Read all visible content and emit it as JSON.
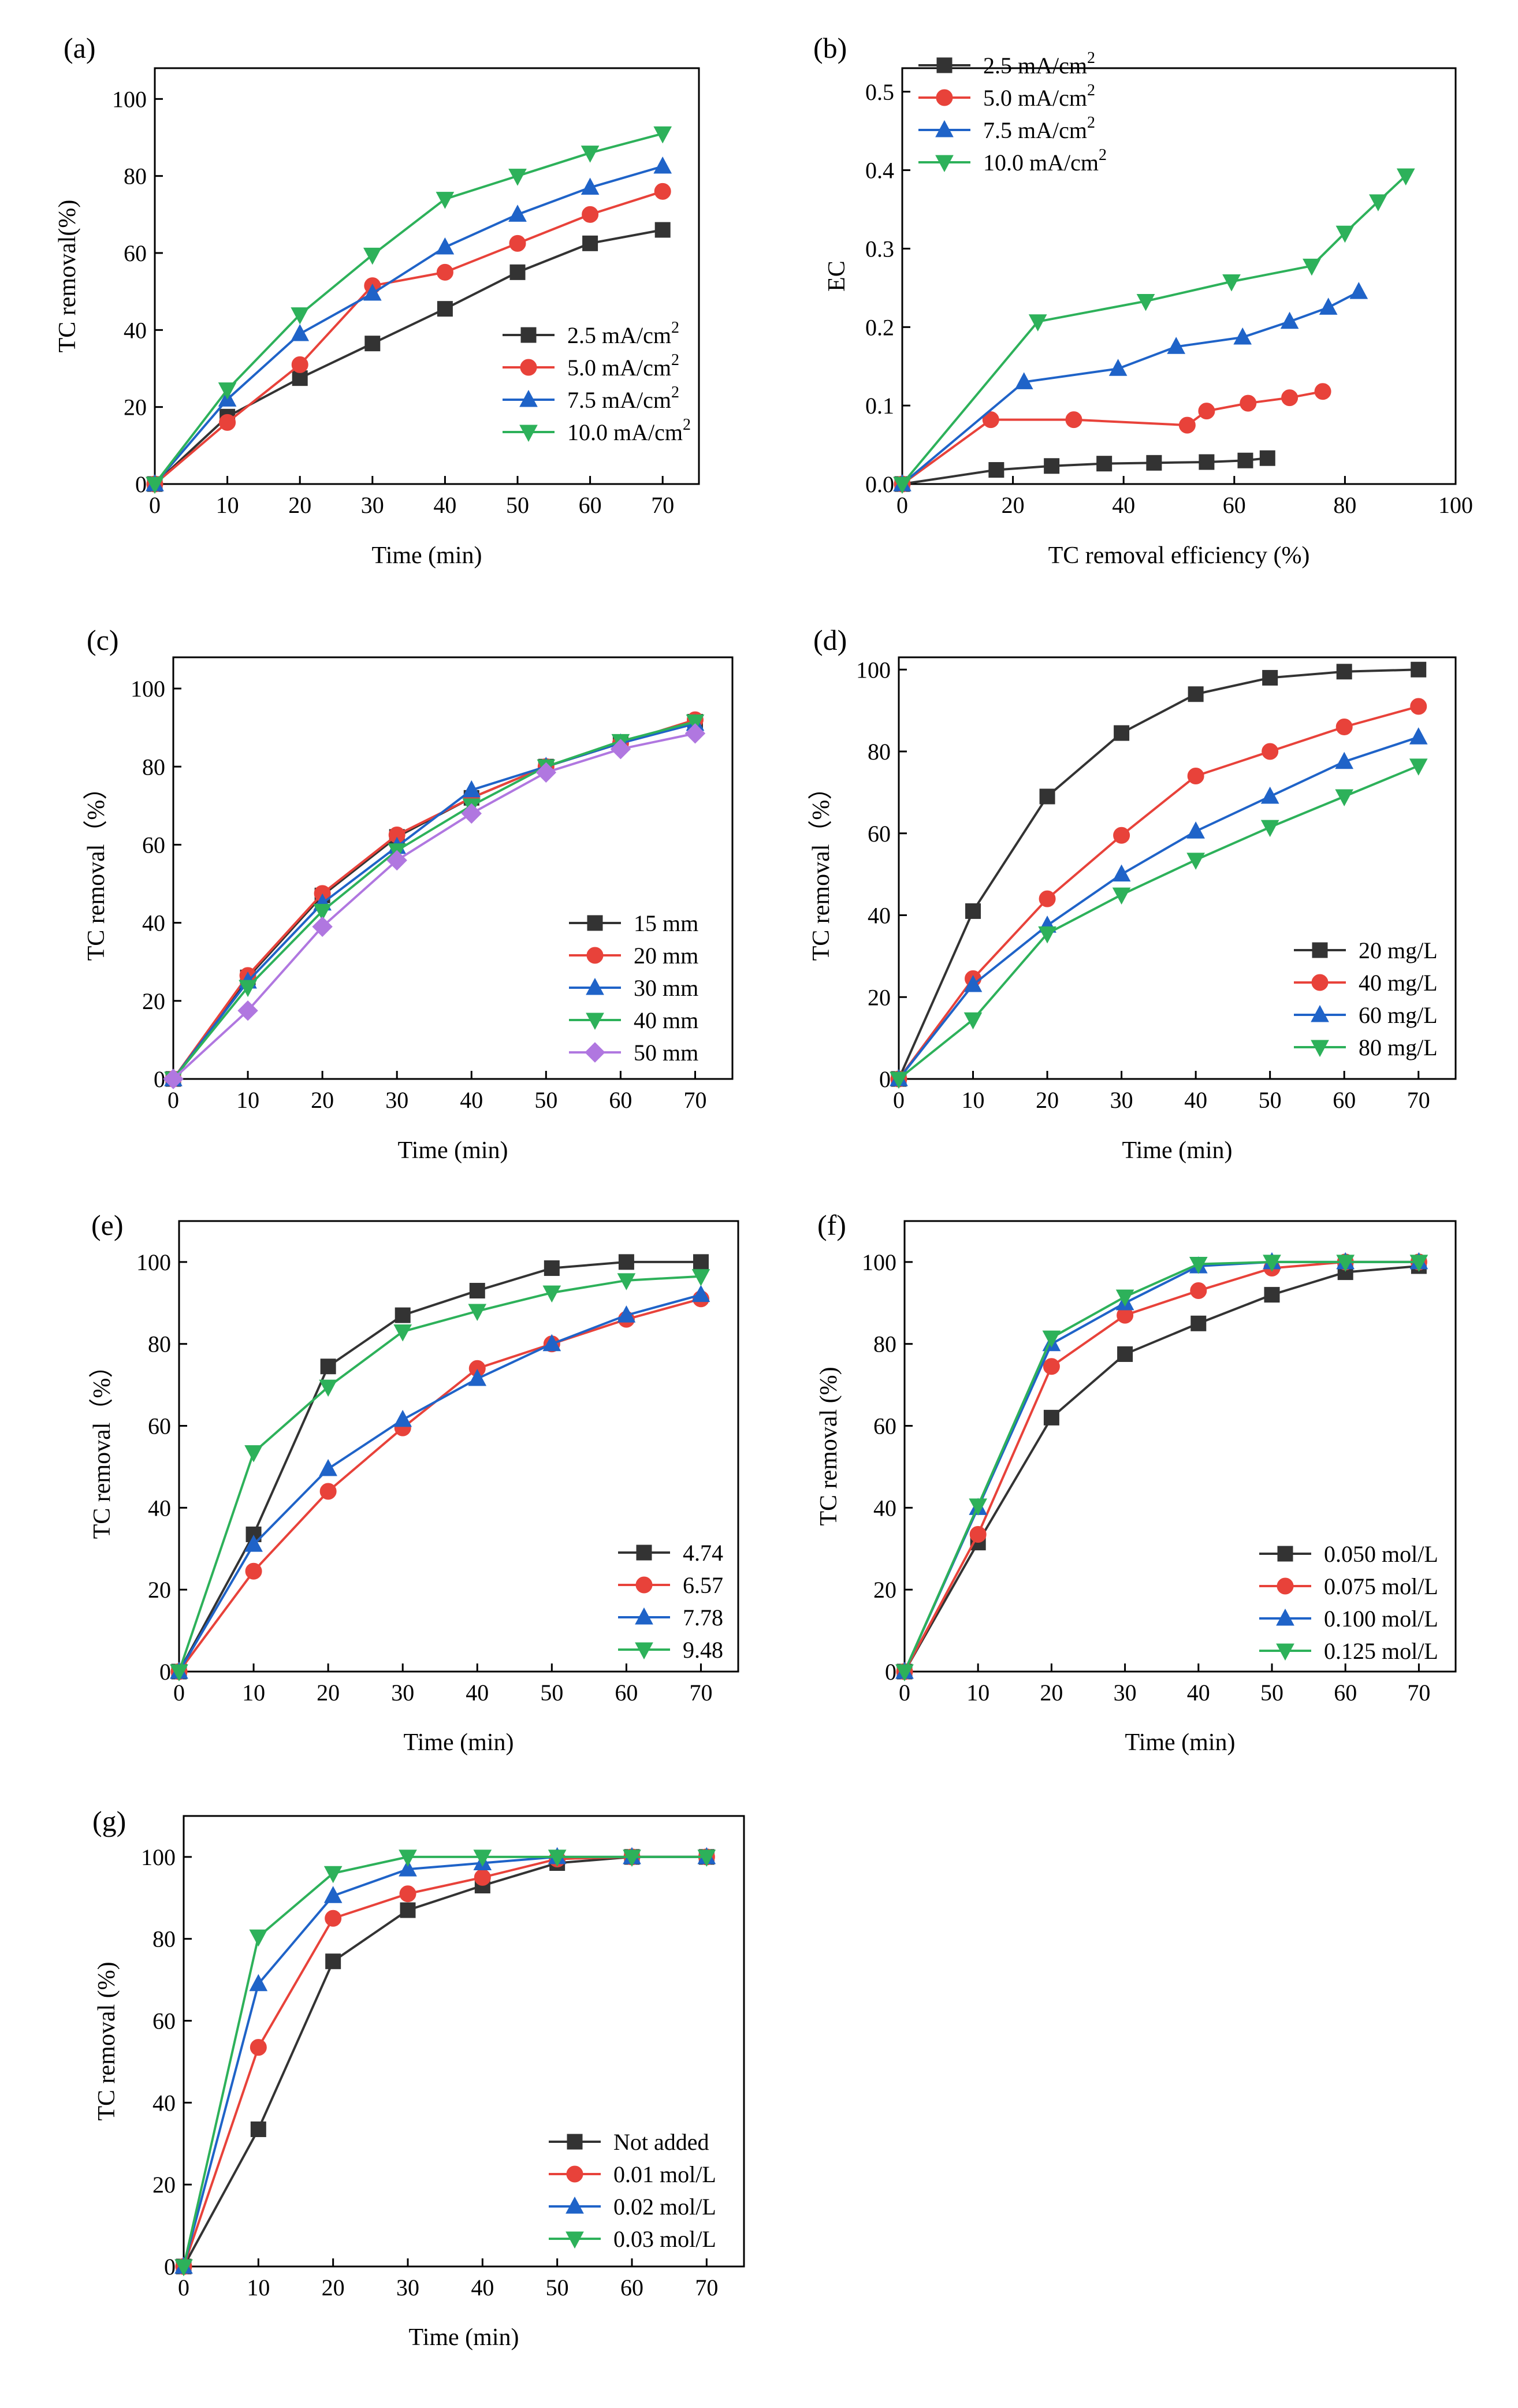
{
  "chart_data": [
    {
      "panel_label": "(a)",
      "type": "line",
      "xlabel": "Time (min)",
      "ylabel": "TC removal(%)",
      "xlim": [
        0,
        75
      ],
      "ylim": [
        0,
        108
      ],
      "xticks": [
        0,
        10,
        20,
        30,
        40,
        50,
        60,
        70
      ],
      "yticks": [
        0,
        20,
        40,
        60,
        80,
        100
      ],
      "yticklabels": [
        "0",
        "20",
        "40",
        "60",
        "80",
        "100"
      ],
      "legend_position": "lower-right",
      "series": [
        {
          "name": "2.5 mA/cm",
          "sup": "2",
          "color": "#333333",
          "marker": "square",
          "x": [
            0,
            10,
            20,
            30,
            40,
            50,
            60,
            70
          ],
          "y": [
            0,
            17.5,
            27.5,
            36.5,
            45.5,
            55,
            62.5,
            66
          ]
        },
        {
          "name": "5.0 mA/cm",
          "sup": "2",
          "color": "#e8423a",
          "marker": "circle",
          "x": [
            0,
            10,
            20,
            30,
            40,
            50,
            60,
            70
          ],
          "y": [
            0,
            16,
            31,
            51.5,
            55,
            62.5,
            70,
            76
          ]
        },
        {
          "name": "7.5 mA/cm",
          "sup": "2",
          "color": "#1f63c8",
          "marker": "triangle-up",
          "x": [
            0,
            10,
            20,
            30,
            40,
            50,
            60,
            70
          ],
          "y": [
            0,
            22,
            39,
            49.5,
            61.5,
            70,
            77,
            82.5
          ]
        },
        {
          "name": "10.0 mA/cm",
          "sup": "2",
          "color": "#2db15a",
          "marker": "triangle-down",
          "x": [
            0,
            10,
            20,
            30,
            40,
            50,
            60,
            70
          ],
          "y": [
            0,
            24.5,
            44,
            59.5,
            74,
            80,
            86,
            91
          ]
        }
      ]
    },
    {
      "panel_label": "(b)",
      "type": "line",
      "xlabel": "TC removal efficiency (%)",
      "ylabel": "EC",
      "xlim": [
        0,
        100
      ],
      "ylim": [
        0,
        0.53
      ],
      "xticks": [
        0,
        20,
        40,
        60,
        80,
        100
      ],
      "yticks": [
        0,
        0.1,
        0.2,
        0.3,
        0.4,
        0.5
      ],
      "yticklabels": [
        "0.0",
        "0.1",
        "0.2",
        "0.3",
        "0.4",
        "0.5"
      ],
      "legend_position": "upper-left",
      "series": [
        {
          "name": "2.5 mA/cm",
          "sup": "2",
          "color": "#333333",
          "marker": "square",
          "x": [
            0,
            17,
            27,
            36.5,
            45.5,
            55,
            62,
            66
          ],
          "y": [
            0,
            0.018,
            0.023,
            0.026,
            0.027,
            0.028,
            0.03,
            0.033
          ]
        },
        {
          "name": "5.0 mA/cm",
          "sup": "2",
          "color": "#e8423a",
          "marker": "circle",
          "x": [
            0,
            16,
            31,
            51.5,
            55,
            62.5,
            70,
            76
          ],
          "y": [
            0,
            0.082,
            0.082,
            0.075,
            0.093,
            0.103,
            0.11,
            0.118
          ]
        },
        {
          "name": "7.5 mA/cm",
          "sup": "2",
          "color": "#1f63c8",
          "marker": "triangle-up",
          "x": [
            0,
            22,
            39,
            49.5,
            61.5,
            70,
            77,
            82.5
          ],
          "y": [
            0,
            0.13,
            0.147,
            0.175,
            0.187,
            0.207,
            0.225,
            0.245
          ]
        },
        {
          "name": "10.0 mA/cm",
          "sup": "2",
          "color": "#2db15a",
          "marker": "triangle-down",
          "x": [
            0,
            24.5,
            44,
            59.5,
            74,
            80,
            86,
            91
          ],
          "y": [
            0,
            0.207,
            0.233,
            0.258,
            0.278,
            0.32,
            0.36,
            0.393
          ]
        }
      ]
    },
    {
      "panel_label": "(c)",
      "type": "line",
      "xlabel": "Time (min)",
      "ylabel": "TC removal（%）",
      "xlim": [
        0,
        75
      ],
      "ylim": [
        0,
        108
      ],
      "xticks": [
        0,
        10,
        20,
        30,
        40,
        50,
        60,
        70
      ],
      "yticks": [
        0,
        20,
        40,
        60,
        80,
        100
      ],
      "yticklabels": [
        "0",
        "20",
        "40",
        "60",
        "80",
        "100"
      ],
      "legend_position": "lower-right",
      "series": [
        {
          "name": "15 mm",
          "color": "#333333",
          "marker": "square",
          "x": [
            0,
            10,
            20,
            30,
            40,
            50,
            60,
            70
          ],
          "y": [
            0,
            26,
            47,
            62,
            72,
            80,
            86,
            91.5
          ]
        },
        {
          "name": "20 mm",
          "color": "#e8423a",
          "marker": "circle",
          "x": [
            0,
            10,
            20,
            30,
            40,
            50,
            60,
            70
          ],
          "y": [
            0,
            26.5,
            47.5,
            62.5,
            72,
            80,
            86,
            92
          ]
        },
        {
          "name": "30 mm",
          "color": "#1f63c8",
          "marker": "triangle-up",
          "x": [
            0,
            10,
            20,
            30,
            40,
            50,
            60,
            70
          ],
          "y": [
            0,
            25,
            45,
            59.5,
            74,
            80,
            86,
            91
          ]
        },
        {
          "name": "40 mm",
          "color": "#2db15a",
          "marker": "triangle-down",
          "x": [
            0,
            10,
            20,
            30,
            40,
            50,
            60,
            70
          ],
          "y": [
            0,
            23.5,
            43,
            58.5,
            70,
            80,
            86.5,
            91.5
          ]
        },
        {
          "name": "50 mm",
          "color": "#b077e0",
          "marker": "diamond",
          "x": [
            0,
            10,
            20,
            30,
            40,
            50,
            60,
            70
          ],
          "y": [
            0,
            17.5,
            39,
            56,
            68,
            78.5,
            84.5,
            88.5
          ]
        }
      ]
    },
    {
      "panel_label": "(d)",
      "type": "line",
      "xlabel": "Time (min)",
      "ylabel": "TC removal（%）",
      "xlim": [
        0,
        75
      ],
      "ylim": [
        0,
        103
      ],
      "xticks": [
        0,
        10,
        20,
        30,
        40,
        50,
        60,
        70
      ],
      "yticks": [
        0,
        20,
        40,
        60,
        80,
        100
      ],
      "yticklabels": [
        "0",
        "20",
        "40",
        "60",
        "80",
        "100"
      ],
      "legend_position": "lower-right",
      "series": [
        {
          "name": "20 mg/L",
          "color": "#333333",
          "marker": "square",
          "x": [
            0,
            10,
            20,
            30,
            40,
            50,
            60,
            70
          ],
          "y": [
            0,
            41,
            69,
            84.5,
            94,
            98,
            99.5,
            100
          ]
        },
        {
          "name": "40 mg/L",
          "color": "#e8423a",
          "marker": "circle",
          "x": [
            0,
            10,
            20,
            30,
            40,
            50,
            60,
            70
          ],
          "y": [
            0,
            24.5,
            44,
            59.5,
            74,
            80,
            86,
            91
          ]
        },
        {
          "name": "60 mg/L",
          "color": "#1f63c8",
          "marker": "triangle-up",
          "x": [
            0,
            10,
            20,
            30,
            40,
            50,
            60,
            70
          ],
          "y": [
            0,
            23,
            37.5,
            50,
            60.5,
            69,
            77.5,
            83.5
          ]
        },
        {
          "name": "80 mg/L",
          "color": "#2db15a",
          "marker": "triangle-down",
          "x": [
            0,
            10,
            20,
            30,
            40,
            50,
            60,
            70
          ],
          "y": [
            0,
            14.5,
            35.5,
            45,
            53.5,
            61.5,
            69,
            76.5
          ]
        }
      ]
    },
    {
      "panel_label": "(e)",
      "type": "line",
      "xlabel": "Time (min)",
      "ylabel": "TC removal（%）",
      "xlim": [
        0,
        75
      ],
      "ylim": [
        0,
        110
      ],
      "xticks": [
        0,
        10,
        20,
        30,
        40,
        50,
        60,
        70
      ],
      "yticks": [
        0,
        20,
        40,
        60,
        80,
        100
      ],
      "yticklabels": [
        "0",
        "20",
        "40",
        "60",
        "80",
        "100"
      ],
      "legend_position": "lower-right",
      "series": [
        {
          "name": "4.74",
          "color": "#333333",
          "marker": "square",
          "x": [
            0,
            10,
            20,
            30,
            40,
            50,
            60,
            70
          ],
          "y": [
            0,
            33.5,
            74.5,
            87,
            93,
            98.5,
            100,
            100
          ]
        },
        {
          "name": "6.57",
          "color": "#e8423a",
          "marker": "circle",
          "x": [
            0,
            10,
            20,
            30,
            40,
            50,
            60,
            70
          ],
          "y": [
            0,
            24.5,
            44,
            59.5,
            74,
            80,
            86,
            91
          ]
        },
        {
          "name": "7.78",
          "color": "#1f63c8",
          "marker": "triangle-up",
          "x": [
            0,
            10,
            20,
            30,
            40,
            50,
            60,
            70
          ],
          "y": [
            0,
            31,
            49.5,
            61.5,
            71.5,
            80,
            87,
            92
          ]
        },
        {
          "name": "9.48",
          "color": "#2db15a",
          "marker": "triangle-down",
          "x": [
            0,
            10,
            20,
            30,
            40,
            50,
            60,
            70
          ],
          "y": [
            0,
            53.5,
            69.5,
            83,
            88,
            92.5,
            95.5,
            96.5
          ]
        }
      ]
    },
    {
      "panel_label": "(f)",
      "type": "line",
      "xlabel": "Time (min)",
      "ylabel": "TC removal (%)",
      "xlim": [
        0,
        75
      ],
      "ylim": [
        0,
        110
      ],
      "xticks": [
        0,
        10,
        20,
        30,
        40,
        50,
        60,
        70
      ],
      "yticks": [
        0,
        20,
        40,
        60,
        80,
        100
      ],
      "yticklabels": [
        "0",
        "20",
        "40",
        "60",
        "80",
        "100"
      ],
      "legend_position": "lower-right",
      "series": [
        {
          "name": "0.050 mol/L",
          "color": "#333333",
          "marker": "square",
          "x": [
            0,
            10,
            20,
            30,
            40,
            50,
            60,
            70
          ],
          "y": [
            0,
            31.5,
            62,
            77.5,
            85,
            92,
            97.5,
            99
          ]
        },
        {
          "name": "0.075 mol/L",
          "color": "#e8423a",
          "marker": "circle",
          "x": [
            0,
            10,
            20,
            30,
            40,
            50,
            60,
            70
          ],
          "y": [
            0,
            33.5,
            74.5,
            87,
            93,
            98.5,
            100,
            100
          ]
        },
        {
          "name": "0.100 mol/L",
          "color": "#1f63c8",
          "marker": "triangle-up",
          "x": [
            0,
            10,
            20,
            30,
            40,
            50,
            60,
            70
          ],
          "y": [
            0,
            40,
            80,
            90,
            99,
            100,
            100,
            100
          ]
        },
        {
          "name": "0.125 mol/L",
          "color": "#2db15a",
          "marker": "triangle-down",
          "x": [
            0,
            10,
            20,
            30,
            40,
            50,
            60,
            70
          ],
          "y": [
            0,
            40.5,
            81.5,
            91.5,
            99.5,
            100,
            100,
            100
          ]
        }
      ]
    },
    {
      "panel_label": "(g)",
      "type": "line",
      "xlabel": "Time (min)",
      "ylabel": "TC removal (%)",
      "xlim": [
        0,
        75
      ],
      "ylim": [
        0,
        110
      ],
      "xticks": [
        0,
        10,
        20,
        30,
        40,
        50,
        60,
        70
      ],
      "yticks": [
        0,
        20,
        40,
        60,
        80,
        100
      ],
      "yticklabels": [
        "0",
        "20",
        "40",
        "60",
        "80",
        "100"
      ],
      "legend_position": "lower-right",
      "series": [
        {
          "name": "Not added",
          "color": "#333333",
          "marker": "square",
          "x": [
            0,
            10,
            20,
            30,
            40,
            50,
            60,
            70
          ],
          "y": [
            0,
            33.5,
            74.5,
            87,
            93,
            98.5,
            100,
            100
          ]
        },
        {
          "name": "0.01 mol/L",
          "color": "#e8423a",
          "marker": "circle",
          "x": [
            0,
            10,
            20,
            30,
            40,
            50,
            60,
            70
          ],
          "y": [
            0,
            53.5,
            85,
            91,
            95,
            99.5,
            100,
            100
          ]
        },
        {
          "name": "0.02 mol/L",
          "color": "#1f63c8",
          "marker": "triangle-up",
          "x": [
            0,
            10,
            20,
            30,
            40,
            50,
            60,
            70
          ],
          "y": [
            0,
            69,
            90.5,
            97,
            98.5,
            100,
            100,
            100
          ]
        },
        {
          "name": "0.03 mol/L",
          "color": "#2db15a",
          "marker": "triangle-down",
          "x": [
            0,
            10,
            20,
            30,
            40,
            50,
            60,
            70
          ],
          "y": [
            0,
            80.5,
            96,
            100,
            100,
            100,
            100,
            100
          ]
        }
      ]
    }
  ]
}
